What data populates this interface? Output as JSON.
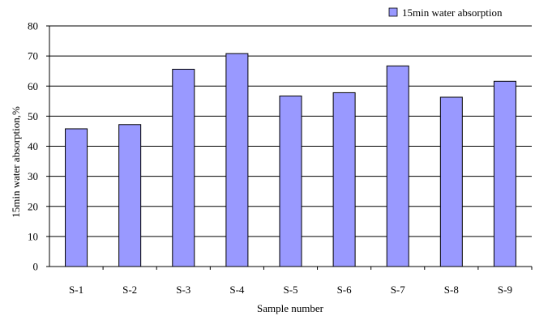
{
  "chart_data": {
    "type": "bar",
    "categories": [
      "S-1",
      "S-2",
      "S-3",
      "S-4",
      "S-5",
      "S-6",
      "S-7",
      "S-8",
      "S-9"
    ],
    "series": [
      {
        "name": "15min water absorption",
        "values": [
          45.8,
          47.2,
          65.6,
          70.8,
          56.7,
          57.8,
          66.7,
          56.3,
          61.6
        ]
      }
    ],
    "title": "",
    "xlabel": "Sample number",
    "ylabel": "15min water absorption,%",
    "ylim": [
      0,
      80
    ],
    "yticks": [
      0,
      10,
      20,
      30,
      40,
      50,
      60,
      70,
      80
    ],
    "grid": true,
    "legend": "top-right",
    "colors": {
      "bar_fill": "#9999ff",
      "bar_stroke": "#000000",
      "grid": "#000000",
      "background": "#ffffff"
    }
  }
}
